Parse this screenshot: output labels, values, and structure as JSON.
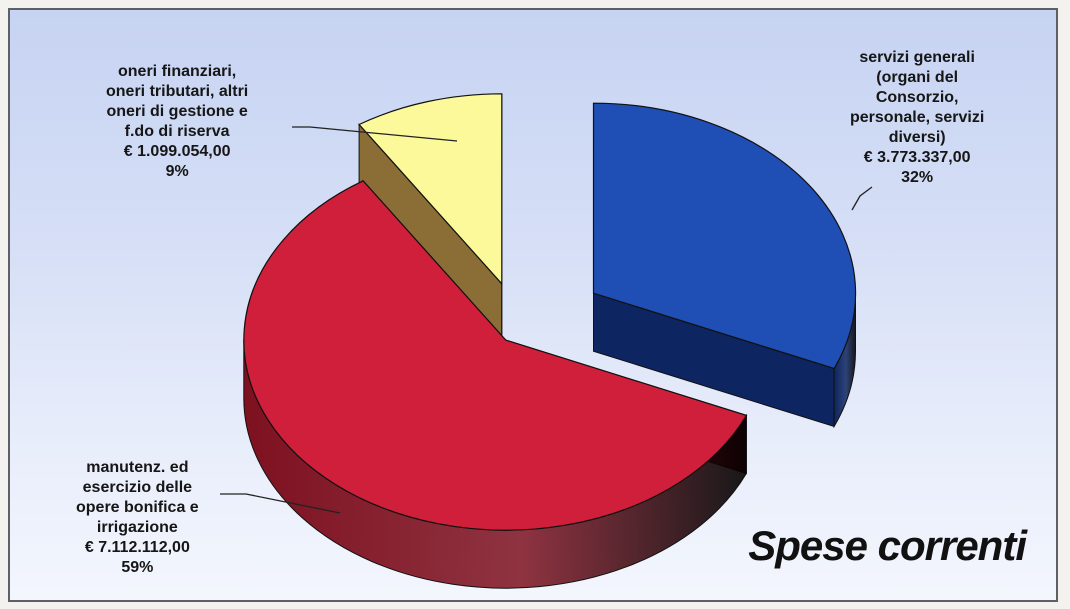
{
  "chart_data": {
    "type": "pie",
    "title": "Spese correnti",
    "slices": [
      {
        "label_lines": [
          "servizi generali",
          "(organi del",
          "Consorzio,",
          "personale, servizi",
          "diversi)"
        ],
        "value_text": "€ 3.773.337,00",
        "value": 3773337.0,
        "percent_text": "32%",
        "percent": 32,
        "color": "#1f4fb5",
        "side_color": "#0d2560"
      },
      {
        "label_lines": [
          "manutenz. ed",
          "esercizio delle",
          "opere bonifica e",
          "irrigazione"
        ],
        "value_text": "€ 7.112.112,00",
        "value": 7112112.0,
        "percent_text": "59%",
        "percent": 59,
        "color": "#cf1f3a",
        "side_color": "#7e1120"
      },
      {
        "label_lines": [
          "oneri finanziari,",
          "oneri tributari, altri",
          "oneri di gestione e",
          "f.do di riserva"
        ],
        "value_text": "€ 1.099.054,00",
        "value": 1099054.0,
        "percent_text": "9%",
        "percent": 9,
        "color": "#fbf99a",
        "side_color": "#8a6e35"
      }
    ]
  }
}
